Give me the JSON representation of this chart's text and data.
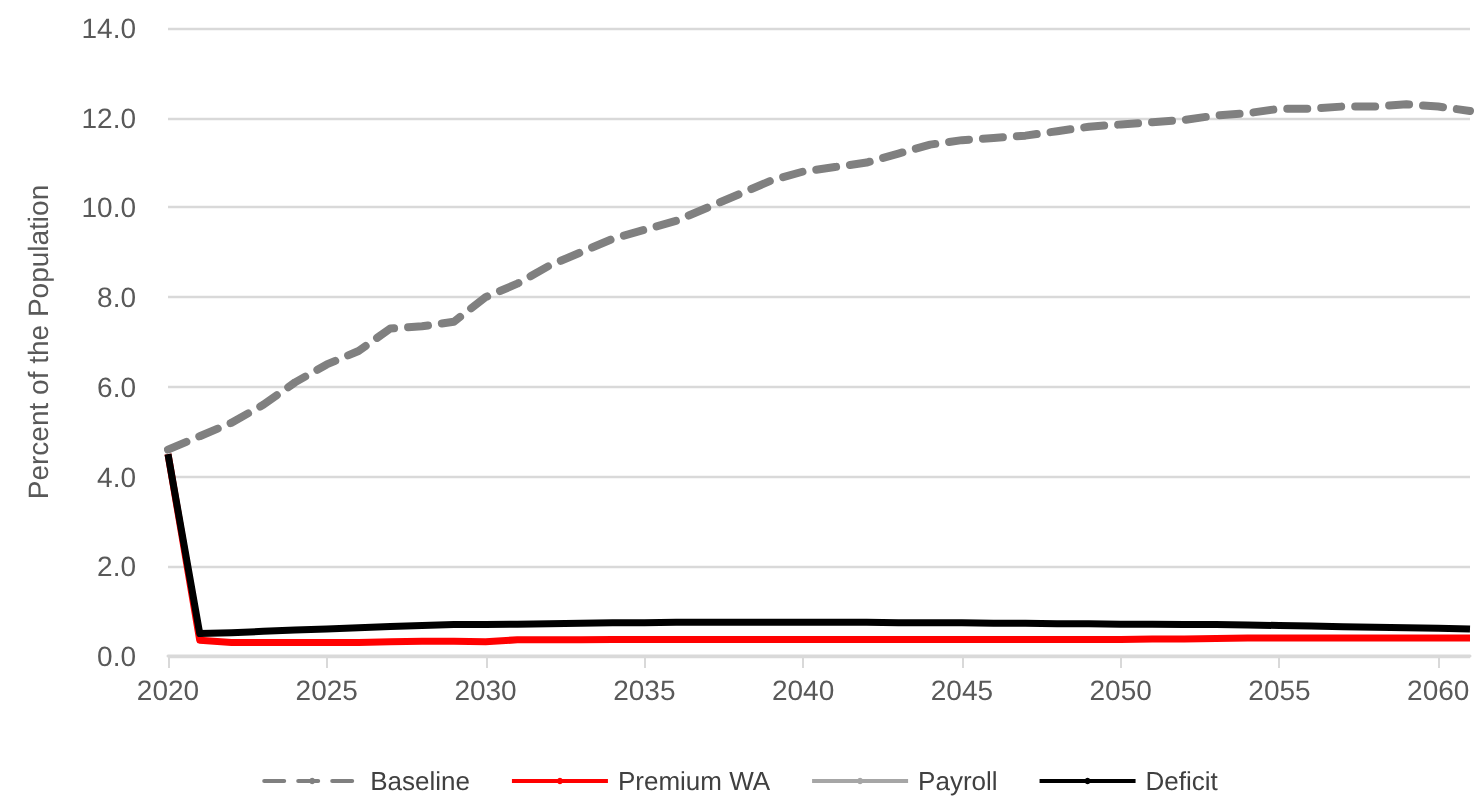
{
  "chart_data": {
    "type": "line",
    "ylabel": "Percent of the Population",
    "x": [
      2020,
      2021,
      2022,
      2023,
      2024,
      2025,
      2026,
      2027,
      2028,
      2029,
      2030,
      2031,
      2032,
      2033,
      2034,
      2035,
      2036,
      2037,
      2038,
      2039,
      2040,
      2041,
      2042,
      2043,
      2044,
      2045,
      2046,
      2047,
      2048,
      2049,
      2050,
      2051,
      2052,
      2053,
      2054,
      2055,
      2056,
      2057,
      2058,
      2059,
      2060,
      2061
    ],
    "series": [
      {
        "name": "Baseline",
        "color": "#808080",
        "line_style": "dashed",
        "values": [
          4.6,
          4.9,
          5.2,
          5.6,
          6.1,
          6.5,
          6.8,
          7.3,
          7.35,
          7.45,
          8.0,
          8.3,
          8.7,
          9.0,
          9.3,
          9.5,
          9.7,
          10.0,
          10.3,
          10.6,
          10.8,
          10.9,
          11.0,
          11.2,
          11.4,
          11.5,
          11.55,
          11.6,
          11.7,
          11.8,
          11.85,
          11.9,
          11.95,
          12.05,
          12.1,
          12.2,
          12.2,
          12.25,
          12.25,
          12.3,
          12.25,
          12.15
        ]
      },
      {
        "name": "Premium WA",
        "color": "#ff0000",
        "line_style": "solid",
        "values": [
          4.5,
          0.35,
          0.3,
          0.3,
          0.3,
          0.3,
          0.3,
          0.32,
          0.33,
          0.33,
          0.32,
          0.36,
          0.36,
          0.36,
          0.37,
          0.37,
          0.37,
          0.37,
          0.37,
          0.37,
          0.37,
          0.37,
          0.37,
          0.37,
          0.37,
          0.37,
          0.37,
          0.37,
          0.37,
          0.37,
          0.37,
          0.38,
          0.38,
          0.39,
          0.4,
          0.4,
          0.4,
          0.4,
          0.4,
          0.4,
          0.4,
          0.4
        ]
      },
      {
        "name": "Payroll",
        "color": "#a6a6a6",
        "line_style": "solid",
        "values": [
          null,
          null,
          null,
          null,
          null,
          null,
          null,
          null,
          null,
          null,
          null,
          null,
          null,
          null,
          null,
          null,
          null,
          null,
          null,
          null,
          null,
          null,
          null,
          null,
          null,
          null,
          null,
          null,
          null,
          null,
          null,
          null,
          null,
          null,
          null,
          null,
          null,
          null,
          null,
          null,
          null,
          null
        ]
      },
      {
        "name": "Deficit",
        "color": "#000000",
        "line_style": "solid",
        "values": [
          4.5,
          0.5,
          0.52,
          0.55,
          0.58,
          0.6,
          0.63,
          0.66,
          0.68,
          0.7,
          0.7,
          0.71,
          0.72,
          0.73,
          0.74,
          0.74,
          0.75,
          0.75,
          0.75,
          0.75,
          0.75,
          0.75,
          0.75,
          0.74,
          0.74,
          0.74,
          0.73,
          0.73,
          0.72,
          0.72,
          0.71,
          0.71,
          0.7,
          0.7,
          0.69,
          0.68,
          0.67,
          0.65,
          0.64,
          0.63,
          0.62,
          0.6
        ]
      }
    ],
    "xlim": [
      2020,
      2061
    ],
    "xticks": [
      2020,
      2025,
      2030,
      2035,
      2040,
      2045,
      2050,
      2055,
      2060
    ],
    "ylim": [
      0,
      14
    ],
    "yticks": [
      {
        "value": 0,
        "label": "0.0"
      },
      {
        "value": 2,
        "label": "2.0"
      },
      {
        "value": 4,
        "label": "4.0"
      },
      {
        "value": 6,
        "label": "6.0"
      },
      {
        "value": 8,
        "label": "8.0"
      },
      {
        "value": 10,
        "label": "10.0"
      },
      {
        "value": 12,
        "label": "12.0"
      },
      {
        "value": 14,
        "label": "14.0"
      }
    ],
    "grid": "y",
    "legend": "bottom",
    "marker": "none"
  }
}
